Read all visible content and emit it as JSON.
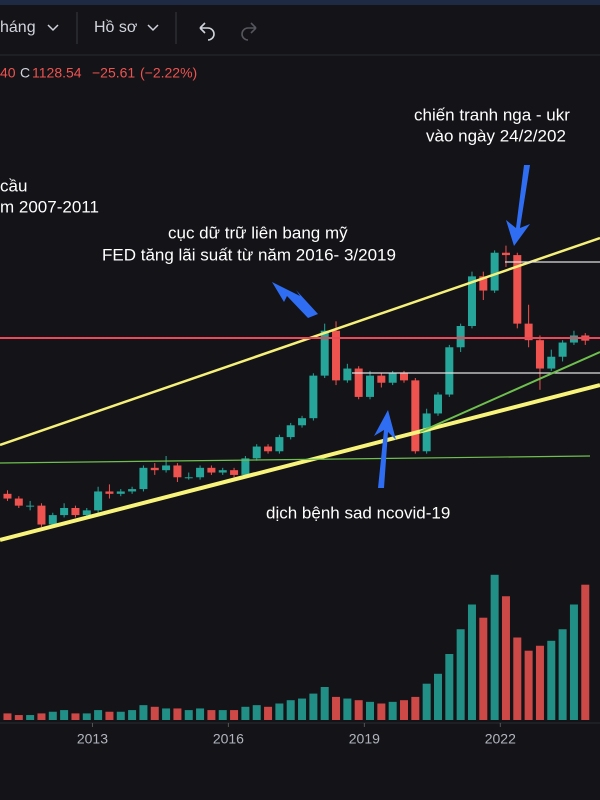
{
  "toolbar": {
    "interval": "háng",
    "profile": "Hồ sơ"
  },
  "header": {
    "ohlc_tail": "40",
    "close_label": "C",
    "close": "1128.54",
    "change": "−25.61",
    "change_pct": "(−2.22%)"
  },
  "annotations": {
    "crisis_1": "cầu",
    "crisis_2": "m 2007-2011",
    "fed_1": "cục dữ trữ liên bang mỹ",
    "fed_2": "FED tăng lãi suất từ năm 2016- 3/2019",
    "war_1": "chiến tranh nga - ukr",
    "war_2": "vào ngày 24/2/202",
    "covid": "dịch bệnh sad ncovid-19"
  },
  "chart_data": {
    "type": "candlestick",
    "x": [
      2011.125,
      2011.375,
      2011.625,
      2011.875,
      2012.125,
      2012.375,
      2012.625,
      2012.875,
      2013.125,
      2013.375,
      2013.625,
      2013.875,
      2014.125,
      2014.375,
      2014.625,
      2014.875,
      2015.125,
      2015.375,
      2015.625,
      2015.875,
      2016.125,
      2016.375,
      2016.625,
      2016.875,
      2017.125,
      2017.375,
      2017.625,
      2017.875,
      2018.125,
      2018.375,
      2018.625,
      2018.875,
      2019.125,
      2019.375,
      2019.625,
      2019.875,
      2020.125,
      2020.375,
      2020.625,
      2020.875,
      2021.125,
      2021.375,
      2021.625,
      2021.875,
      2022.125,
      2022.375,
      2022.625,
      2022.875,
      2023.125,
      2023.375,
      2023.625,
      2023.875
    ],
    "open": [
      480,
      460,
      430,
      430,
      350,
      390,
      420,
      390,
      410,
      490,
      480,
      490,
      500,
      590,
      580,
      600,
      550,
      550,
      590,
      570,
      580,
      560,
      630,
      680,
      660,
      720,
      770,
      800,
      980,
      1170,
      960,
      1010,
      890,
      980,
      950,
      990,
      960,
      660,
      820,
      900,
      1100,
      1190,
      1400,
      1340,
      1500,
      1490,
      1200,
      1130,
      1010,
      1060,
      1120,
      1150
    ],
    "high": [
      495,
      470,
      450,
      440,
      400,
      440,
      430,
      420,
      510,
      520,
      500,
      510,
      600,
      610,
      640,
      610,
      570,
      600,
      600,
      590,
      590,
      640,
      690,
      690,
      730,
      780,
      810,
      990,
      1200,
      1210,
      1030,
      1020,
      1000,
      990,
      1000,
      1000,
      970,
      840,
      910,
      1110,
      1200,
      1420,
      1420,
      1510,
      1530,
      1500,
      1280,
      1150,
      1090,
      1130,
      1170,
      1160
    ],
    "low": [
      450,
      420,
      410,
      340,
      340,
      380,
      380,
      380,
      400,
      460,
      470,
      480,
      490,
      560,
      570,
      530,
      540,
      540,
      560,
      560,
      550,
      550,
      620,
      650,
      650,
      710,
      760,
      790,
      970,
      940,
      950,
      880,
      880,
      930,
      940,
      950,
      650,
      650,
      810,
      890,
      1080,
      1180,
      1300,
      1330,
      1440,
      1180,
      1100,
      920,
      1000,
      1040,
      1110,
      1110
    ],
    "close": [
      460,
      430,
      430,
      350,
      390,
      420,
      390,
      410,
      490,
      480,
      490,
      500,
      590,
      580,
      600,
      550,
      550,
      590,
      570,
      580,
      560,
      630,
      680,
      660,
      720,
      770,
      800,
      980,
      1170,
      960,
      1010,
      890,
      980,
      950,
      990,
      960,
      660,
      820,
      900,
      1100,
      1190,
      1400,
      1340,
      1500,
      1490,
      1200,
      1130,
      1010,
      1060,
      1120,
      1150,
      1128
    ],
    "volume": [
      4,
      3,
      3,
      4,
      5,
      6,
      4,
      4,
      6,
      5,
      5,
      6,
      9,
      8,
      7,
      7,
      6,
      7,
      6,
      6,
      6,
      8,
      9,
      8,
      10,
      12,
      13,
      16,
      20,
      14,
      13,
      12,
      11,
      10,
      11,
      12,
      14,
      22,
      28,
      40,
      55,
      70,
      62,
      88,
      75,
      50,
      42,
      45,
      48,
      55,
      70,
      82
    ],
    "volume_ylim": [
      0,
      100
    ],
    "up_color": "#26a69a",
    "down_color": "#ef5350",
    "xlim": [
      2010.96,
      2024.2
    ],
    "xticks": [
      2013,
      2016,
      2019,
      2022
    ],
    "ylim": [
      200,
      2400
    ]
  }
}
